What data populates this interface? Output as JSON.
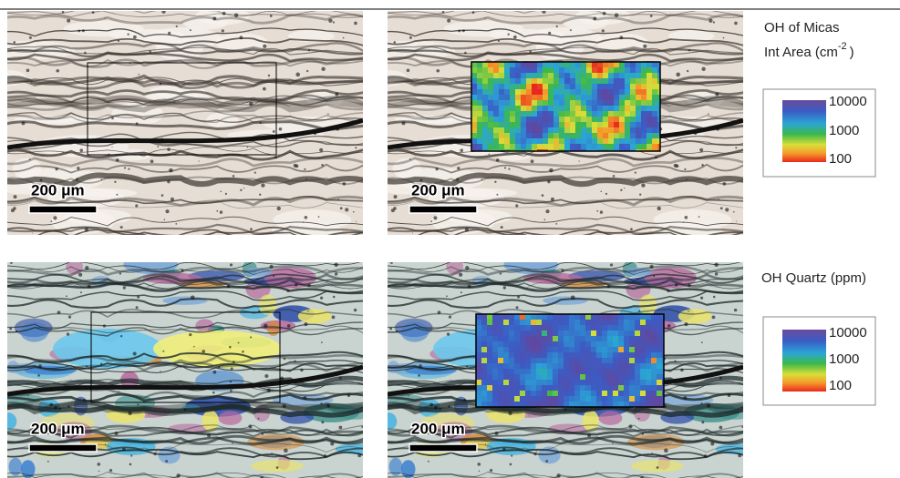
{
  "panels": [
    {
      "scale_bar": "200 μm"
    },
    {
      "scale_bar": "200 μm"
    },
    {
      "scale_bar": "200 μm"
    },
    {
      "scale_bar": "200 μm"
    }
  ],
  "legends": [
    {
      "title": "OH of Micas",
      "subtitle": "Int Area (cm",
      "superscript": "-2",
      "subtitle_end": ")",
      "colorbar_labels": [
        "10000",
        "1000",
        "100"
      ]
    },
    {
      "title": "OH Quartz (ppm)",
      "colorbar_labels": [
        "10000",
        "1000",
        "100"
      ]
    }
  ]
}
